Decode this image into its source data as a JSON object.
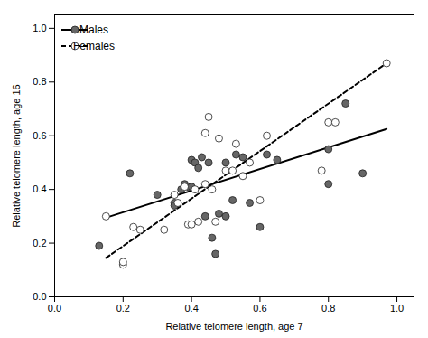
{
  "chart_data": {
    "type": "scatter",
    "xlabel": "Relative telomere length, age 7",
    "ylabel": "Relative telomere length, age 16",
    "xlim": [
      0.0,
      1.05
    ],
    "ylim": [
      0.0,
      1.05
    ],
    "xticks": [
      {
        "value": 0.0,
        "label": "0.0"
      },
      0.2,
      0.4,
      0.6,
      0.8,
      {
        "value": 1.0,
        "label": "1.0"
      }
    ],
    "yticks": [
      {
        "value": 0.0,
        "label": "0.0"
      },
      0.2,
      0.4,
      0.6,
      0.8,
      {
        "value": 1.0,
        "label": "1.0"
      }
    ],
    "grid": false,
    "legend": "upper left",
    "series": [
      {
        "name": "Males",
        "color": "#666666",
        "marker": "o",
        "line_style": "solid",
        "x": [
          0.13,
          0.22,
          0.3,
          0.35,
          0.35,
          0.37,
          0.38,
          0.39,
          0.4,
          0.4,
          0.41,
          0.42,
          0.43,
          0.44,
          0.45,
          0.46,
          0.47,
          0.48,
          0.5,
          0.5,
          0.52,
          0.53,
          0.55,
          0.57,
          0.6,
          0.62,
          0.65,
          0.8,
          0.8,
          0.85,
          0.9
        ],
        "values": [
          0.19,
          0.46,
          0.38,
          0.35,
          0.34,
          0.4,
          0.42,
          0.41,
          0.41,
          0.51,
          0.5,
          0.48,
          0.52,
          0.3,
          0.5,
          0.22,
          0.16,
          0.31,
          0.5,
          0.3,
          0.36,
          0.53,
          0.52,
          0.35,
          0.26,
          0.53,
          0.51,
          0.55,
          0.42,
          0.72,
          0.46
        ],
        "fit_x": [
          0.15,
          0.97
        ],
        "fit_values": [
          0.295,
          0.625
        ]
      },
      {
        "name": "Females",
        "color": "#ffffff",
        "marker": "o",
        "line_style": "dashed",
        "x": [
          0.15,
          0.2,
          0.2,
          0.23,
          0.25,
          0.32,
          0.35,
          0.36,
          0.38,
          0.39,
          0.4,
          0.41,
          0.42,
          0.44,
          0.44,
          0.45,
          0.46,
          0.47,
          0.48,
          0.5,
          0.52,
          0.53,
          0.55,
          0.57,
          0.6,
          0.62,
          0.78,
          0.8,
          0.82,
          0.97
        ],
        "values": [
          0.3,
          0.12,
          0.13,
          0.26,
          0.25,
          0.25,
          0.38,
          0.35,
          0.41,
          0.27,
          0.27,
          0.4,
          0.28,
          0.42,
          0.61,
          0.67,
          0.4,
          0.28,
          0.59,
          0.47,
          0.47,
          0.57,
          0.45,
          0.5,
          0.36,
          0.6,
          0.47,
          0.65,
          0.65,
          0.87
        ],
        "fit_x": [
          0.15,
          0.97
        ],
        "fit_values": [
          0.145,
          0.87
        ]
      }
    ]
  }
}
